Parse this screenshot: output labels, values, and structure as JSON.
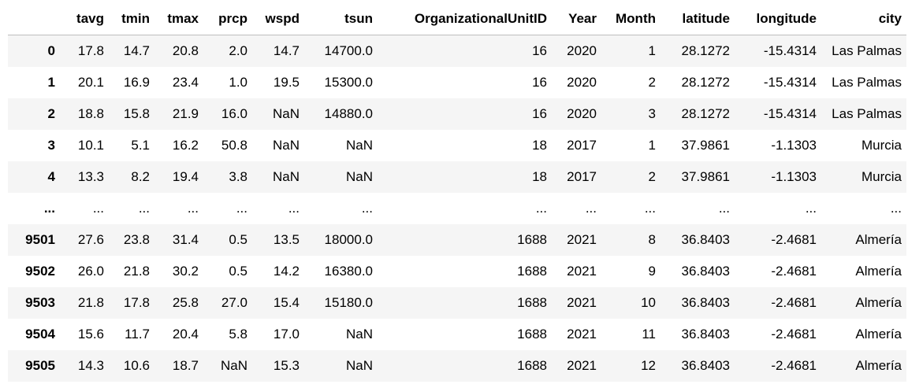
{
  "table": {
    "columns": [
      "",
      "tavg",
      "tmin",
      "tmax",
      "prcp",
      "wspd",
      "tsun",
      "OrganizationalUnitID",
      "Year",
      "Month",
      "latitude",
      "longitude",
      "city"
    ],
    "rows": [
      [
        "0",
        "17.8",
        "14.7",
        "20.8",
        "2.0",
        "14.7",
        "14700.0",
        "16",
        "2020",
        "1",
        "28.1272",
        "-15.4314",
        "Las Palmas"
      ],
      [
        "1",
        "20.1",
        "16.9",
        "23.4",
        "1.0",
        "19.5",
        "15300.0",
        "16",
        "2020",
        "2",
        "28.1272",
        "-15.4314",
        "Las Palmas"
      ],
      [
        "2",
        "18.8",
        "15.8",
        "21.9",
        "16.0",
        "NaN",
        "14880.0",
        "16",
        "2020",
        "3",
        "28.1272",
        "-15.4314",
        "Las Palmas"
      ],
      [
        "3",
        "10.1",
        "5.1",
        "16.2",
        "50.8",
        "NaN",
        "NaN",
        "18",
        "2017",
        "1",
        "37.9861",
        "-1.1303",
        "Murcia"
      ],
      [
        "4",
        "13.3",
        "8.2",
        "19.4",
        "3.8",
        "NaN",
        "NaN",
        "18",
        "2017",
        "2",
        "37.9861",
        "-1.1303",
        "Murcia"
      ],
      [
        "...",
        "...",
        "...",
        "...",
        "...",
        "...",
        "...",
        "...",
        "...",
        "...",
        "...",
        "...",
        "..."
      ],
      [
        "9501",
        "27.6",
        "23.8",
        "31.4",
        "0.5",
        "13.5",
        "18000.0",
        "1688",
        "2021",
        "8",
        "36.8403",
        "-2.4681",
        "Almería"
      ],
      [
        "9502",
        "26.0",
        "21.8",
        "30.2",
        "0.5",
        "14.2",
        "16380.0",
        "1688",
        "2021",
        "9",
        "36.8403",
        "-2.4681",
        "Almería"
      ],
      [
        "9503",
        "21.8",
        "17.8",
        "25.8",
        "27.0",
        "15.4",
        "15180.0",
        "1688",
        "2021",
        "10",
        "36.8403",
        "-2.4681",
        "Almería"
      ],
      [
        "9504",
        "15.6",
        "11.7",
        "20.4",
        "5.8",
        "17.0",
        "NaN",
        "1688",
        "2021",
        "11",
        "36.8403",
        "-2.4681",
        "Almería"
      ],
      [
        "9505",
        "14.3",
        "10.6",
        "18.7",
        "NaN",
        "15.3",
        "NaN",
        "1688",
        "2021",
        "12",
        "36.8403",
        "-2.4681",
        "Almería"
      ]
    ]
  }
}
